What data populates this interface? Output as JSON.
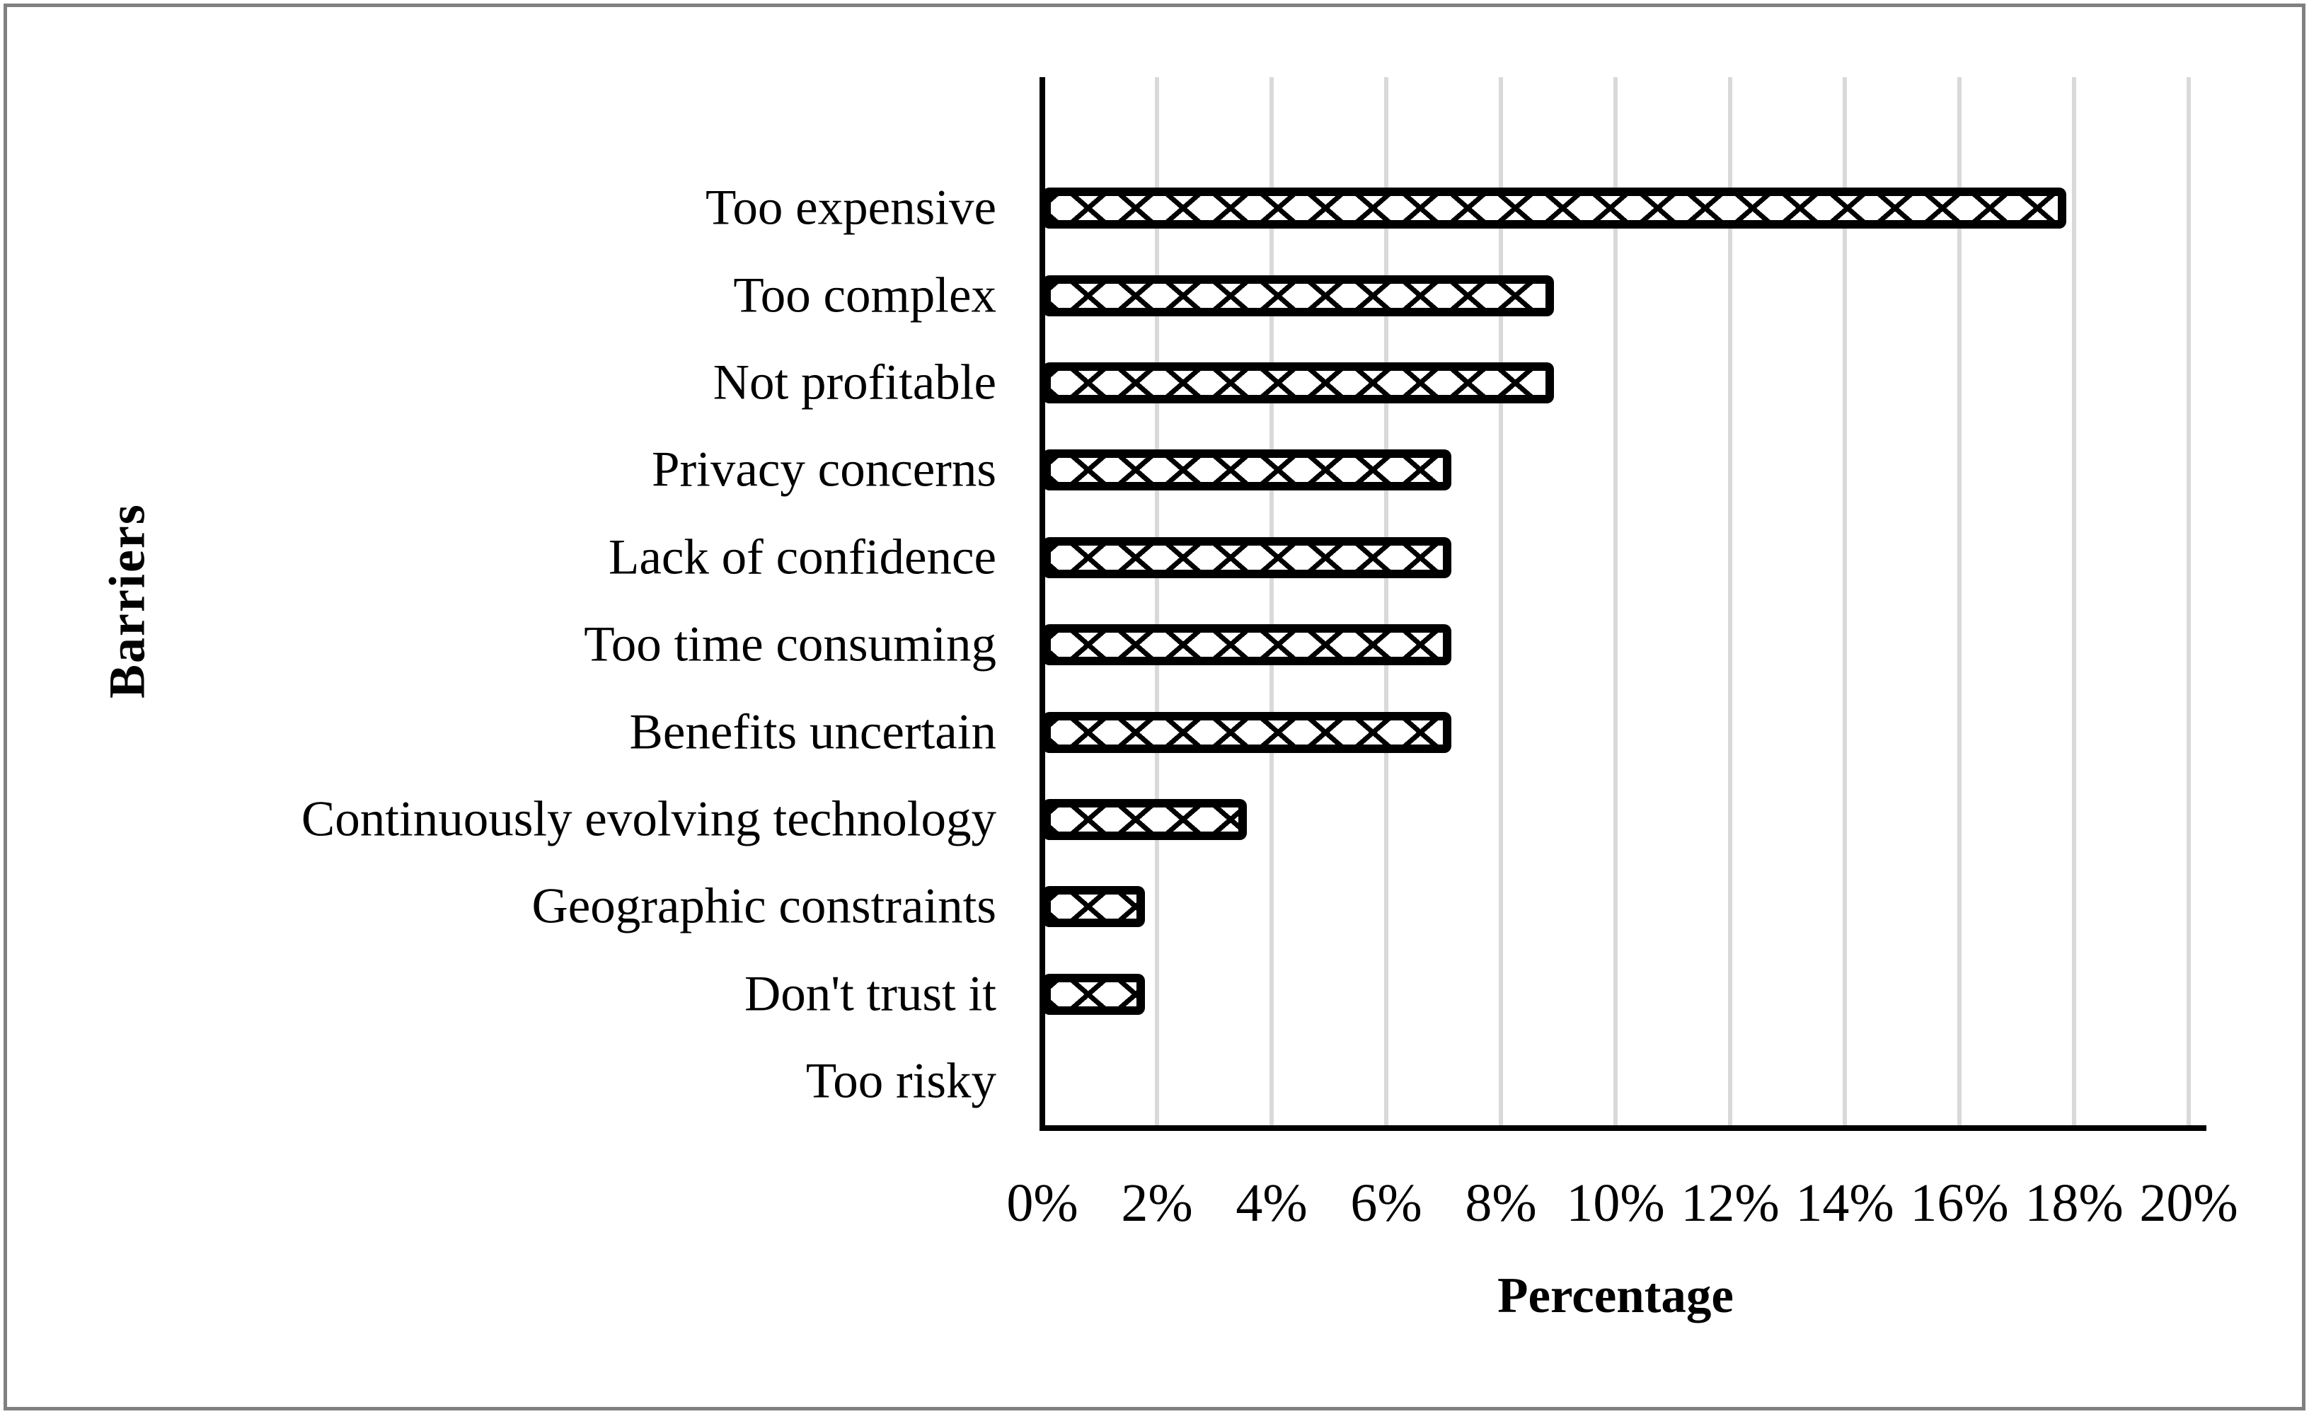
{
  "figure": {
    "background": "#ffffff",
    "border_color": "#808080"
  },
  "chart_data": {
    "type": "bar",
    "orientation": "horizontal",
    "title": "",
    "xlabel": "Percentage",
    "ylabel": "Barriers",
    "categories": [
      "Too expensive",
      "Too complex",
      "Not profitable",
      "Privacy concerns",
      "Lack of confidence",
      "Too time consuming",
      "Benefits uncertain",
      "Continuously evolving technology",
      "Geographic constraints",
      "Don't trust it",
      "Too risky"
    ],
    "values": [
      17.86,
      8.93,
      8.93,
      7.14,
      7.14,
      7.14,
      7.14,
      3.57,
      1.79,
      1.79,
      0
    ],
    "xlim": [
      0,
      20
    ],
    "x_ticks": [
      "0%",
      "2%",
      "4%",
      "6%",
      "8%",
      "10%",
      "12%",
      "14%",
      "16%",
      "18%",
      "20%"
    ],
    "grid": true,
    "legend": "none",
    "bar_style": "diagonal-crosshatch",
    "colors": {
      "bar_fill": "#ffffff",
      "bar_border": "#000000",
      "hatch": "#000000",
      "gridline": "#d9d9d9",
      "axis": "#000000",
      "text": "#000000"
    }
  }
}
